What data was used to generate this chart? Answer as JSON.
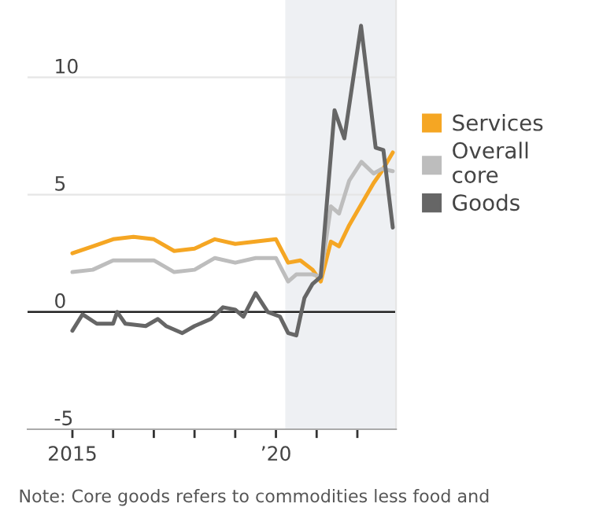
{
  "chart_data": {
    "type": "line",
    "xlim": [
      2013.9,
      2022.95
    ],
    "ylim": [
      -5,
      13.3
    ],
    "xticks": [
      {
        "value": 2015,
        "label": "2015"
      },
      {
        "value": 2016,
        "label": null
      },
      {
        "value": 2017,
        "label": null
      },
      {
        "value": 2018,
        "label": null
      },
      {
        "value": 2019,
        "label": null
      },
      {
        "value": 2020,
        "label": "’20"
      },
      {
        "value": 2021,
        "label": null
      },
      {
        "value": 2022,
        "label": null
      }
    ],
    "yticks": [
      {
        "value": -5,
        "label": "-5"
      },
      0,
      5,
      10
    ],
    "grid": "y",
    "legend": "right",
    "line_style": "solid",
    "marker": "none",
    "bands": [
      {
        "axis": "x",
        "from": 2020.23,
        "to": 2022.95,
        "color": "#eef0f3"
      }
    ],
    "ref_lines": [
      {
        "axis": "y",
        "value": 0,
        "color": "#222222"
      }
    ],
    "annotations": [
      "Note: Core goods refers to commodities less food and"
    ],
    "series": [
      {
        "name": "Services",
        "color": "#f5a623",
        "x": [
          2015,
          2015.5,
          2016,
          2016.5,
          2017,
          2017.5,
          2018,
          2018.5,
          2019,
          2019.5,
          2020,
          2020.3,
          2020.6,
          2020.9,
          2021.1,
          2021.35,
          2021.55,
          2021.8,
          2022.1,
          2022.4,
          2022.6,
          2022.87
        ],
        "values": [
          2.5,
          2.8,
          3.1,
          3.2,
          3.1,
          2.6,
          2.7,
          3.1,
          2.9,
          3.0,
          3.1,
          2.1,
          2.2,
          1.8,
          1.3,
          3.0,
          2.8,
          3.7,
          4.6,
          5.5,
          6.0,
          6.8
        ]
      },
      {
        "name": "Overall\ncore",
        "color": "#bdbdbd",
        "x": [
          2015,
          2015.5,
          2016,
          2016.5,
          2017,
          2017.5,
          2018,
          2018.5,
          2019,
          2019.5,
          2020,
          2020.3,
          2020.5,
          2020.9,
          2021.1,
          2021.35,
          2021.55,
          2021.8,
          2022.1,
          2022.4,
          2022.6,
          2022.87
        ],
        "values": [
          1.7,
          1.8,
          2.2,
          2.2,
          2.2,
          1.7,
          1.8,
          2.3,
          2.1,
          2.3,
          2.3,
          1.3,
          1.6,
          1.6,
          1.5,
          4.5,
          4.2,
          5.6,
          6.4,
          5.9,
          6.1,
          6.0
        ]
      },
      {
        "name": "Goods",
        "color": "#666666",
        "x": [
          2015,
          2015.25,
          2015.6,
          2016,
          2016.1,
          2016.3,
          2016.8,
          2017.1,
          2017.3,
          2017.7,
          2018,
          2018.4,
          2018.7,
          2019,
          2019.2,
          2019.5,
          2019.8,
          2020.1,
          2020.3,
          2020.5,
          2020.7,
          2020.9,
          2021.1,
          2021.44,
          2021.68,
          2022.09,
          2022.45,
          2022.64,
          2022.87
        ],
        "values": [
          -0.8,
          -0.1,
          -0.5,
          -0.5,
          0.0,
          -0.5,
          -0.6,
          -0.3,
          -0.6,
          -0.9,
          -0.6,
          -0.3,
          0.2,
          0.1,
          -0.2,
          0.8,
          0.0,
          -0.2,
          -0.9,
          -1.0,
          0.6,
          1.2,
          1.5,
          8.6,
          7.4,
          12.2,
          7.0,
          6.9,
          3.6
        ]
      }
    ]
  }
}
